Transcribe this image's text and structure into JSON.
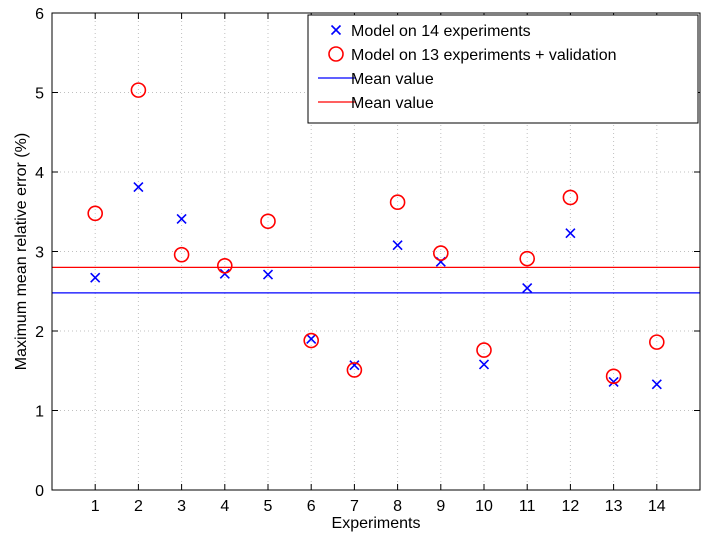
{
  "chart_data": {
    "type": "scatter",
    "xlabel": "Experiments",
    "ylabel": "Maximum mean relative error (%)",
    "xlim": [
      0,
      15
    ],
    "ylim": [
      0,
      6
    ],
    "x_ticks": [
      1,
      2,
      3,
      4,
      5,
      6,
      7,
      8,
      9,
      10,
      11,
      12,
      13,
      14
    ],
    "y_ticks": [
      0,
      1,
      2,
      3,
      4,
      5,
      6
    ],
    "grid": true,
    "legend_position": "top-right",
    "series": [
      {
        "name": "Model on 14 experiments",
        "marker": "x",
        "color": "#0000ff",
        "x": [
          1,
          2,
          3,
          4,
          5,
          6,
          7,
          8,
          9,
          10,
          11,
          12,
          13,
          14
        ],
        "y": [
          2.67,
          3.81,
          3.41,
          2.72,
          2.71,
          1.9,
          1.57,
          3.08,
          2.87,
          1.58,
          2.54,
          3.23,
          1.36,
          1.33
        ]
      },
      {
        "name": "Model on 13 experiments + validation",
        "marker": "o",
        "color": "#ff0000",
        "x": [
          1,
          2,
          3,
          4,
          5,
          6,
          7,
          8,
          9,
          10,
          11,
          12,
          13,
          14
        ],
        "y": [
          3.48,
          5.03,
          2.96,
          2.82,
          3.38,
          1.88,
          1.51,
          3.62,
          2.98,
          1.76,
          2.91,
          3.68,
          1.43,
          1.86
        ]
      }
    ],
    "reference_lines": [
      {
        "name": "Mean value",
        "y": 2.48,
        "color": "#0000ff"
      },
      {
        "name": "Mean value",
        "y": 2.8,
        "color": "#ff0000"
      }
    ]
  }
}
